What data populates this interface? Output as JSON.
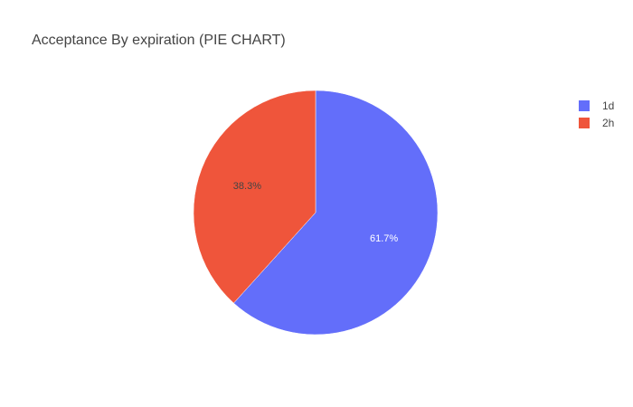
{
  "chart_data": {
    "type": "pie",
    "title": "Acceptance By expiration (PIE CHART)",
    "labels": [
      "1d",
      "2h"
    ],
    "values": [
      61.7,
      38.3
    ],
    "value_labels": [
      "61.7%",
      "38.3%"
    ],
    "colors": [
      "#636efa",
      "#ef553b"
    ],
    "label_colors": [
      "#ffffff",
      "#444444"
    ],
    "direction": "clockwise",
    "start": "top",
    "legend_position": "top-right"
  }
}
